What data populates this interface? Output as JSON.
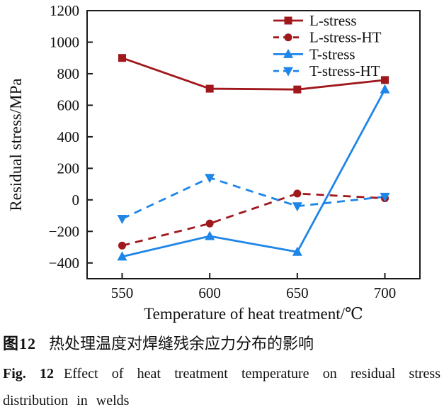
{
  "figure": {
    "caption_zh_label": "图12",
    "caption_zh_text": "热处理温度对焊缝残余应力分布的影响",
    "caption_en_label": "Fig. 12",
    "caption_en_text": "Effect of heat treatment temperature on residual stress distribution in welds"
  },
  "colors": {
    "dark_red": "#A0181C",
    "blue": "#1E86E8",
    "axis": "#1A1A1A",
    "text": "#111111"
  },
  "chart_data": {
    "type": "line",
    "x": [
      550,
      600,
      650,
      700
    ],
    "series": [
      {
        "name": "L-stress",
        "values": [
          900,
          705,
          700,
          760
        ],
        "color": "#A0181C",
        "line": "solid",
        "marker": "square"
      },
      {
        "name": "L-stress-HT",
        "values": [
          -290,
          -150,
          40,
          10
        ],
        "color": "#A0181C",
        "line": "dashed",
        "marker": "circle"
      },
      {
        "name": "T-stress",
        "values": [
          -360,
          -230,
          -330,
          700
        ],
        "color": "#1E86E8",
        "line": "solid",
        "marker": "triangle-up"
      },
      {
        "name": "T-stress-HT",
        "values": [
          -120,
          140,
          -40,
          20
        ],
        "color": "#1E86E8",
        "line": "dashed",
        "marker": "triangle-down"
      }
    ],
    "title": "",
    "xlabel": "Temperature of heat treatment/℃",
    "ylabel": "Residual stress/MPa",
    "xlim": [
      530,
      720
    ],
    "ylim": [
      -500,
      1200
    ],
    "xticks": [
      550,
      600,
      650,
      700
    ],
    "yticks": [
      -400,
      -200,
      0,
      200,
      400,
      600,
      800,
      1000,
      1200
    ],
    "grid": false,
    "legend_position": "top-right"
  }
}
